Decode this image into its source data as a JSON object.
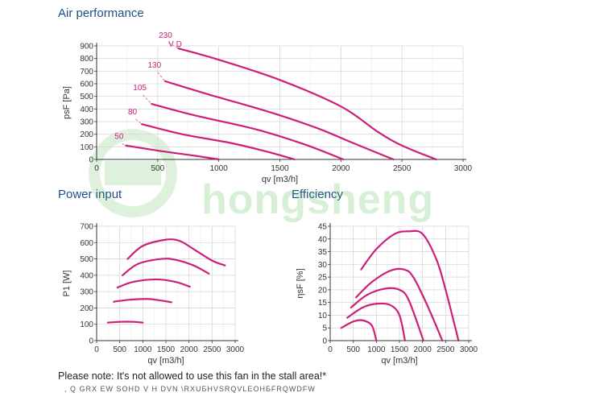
{
  "titles": {
    "air": "Air performance",
    "power": "Power input",
    "efficiency": "Efficiency"
  },
  "watermark_text": "hongsheng",
  "notes": {
    "stall": "Please note: It's not allowed to use this fan in the stall area!*",
    "garbled": ", Q  GRX EW  SOHD V H   DVN \\RXUƂHVSRQVLEOHƂFRQWDFW"
  },
  "colors": {
    "curve": "#cc1f7a",
    "grid": "#d8d8d8",
    "axis": "#333333",
    "title": "#1f4e8c",
    "dashed": "#e58ab5"
  },
  "chart_data": [
    {
      "id": "air",
      "type": "line",
      "xlabel": "qv [m3/h]",
      "ylabel": "psF [Pa]",
      "xlim": [
        0,
        3000
      ],
      "ylim": [
        0,
        900
      ],
      "xticks": [
        0,
        500,
        1000,
        1500,
        2000,
        2500,
        3000
      ],
      "yticks": [
        0,
        100,
        200,
        300,
        400,
        500,
        600,
        700,
        800,
        900
      ],
      "grid": true,
      "series": [
        {
          "name": "230",
          "sublabel": "V D",
          "x": [
            670,
            1000,
            1500,
            2000,
            2300,
            2500,
            2780
          ],
          "y": [
            880,
            790,
            630,
            420,
            220,
            110,
            0
          ],
          "dashed_start": [
            590,
            925
          ]
        },
        {
          "name": "130",
          "x": [
            560,
            900,
            1400,
            1800,
            2100,
            2430
          ],
          "y": [
            620,
            520,
            380,
            250,
            130,
            0
          ],
          "dashed_start": [
            500,
            690
          ]
        },
        {
          "name": "105",
          "x": [
            450,
            800,
            1300,
            1700,
            2020
          ],
          "y": [
            440,
            350,
            240,
            120,
            0
          ],
          "dashed_start": [
            380,
            510
          ]
        },
        {
          "name": "80",
          "x": [
            370,
            700,
            1100,
            1400,
            1620
          ],
          "y": [
            280,
            200,
            130,
            60,
            0
          ],
          "dashed_start": [
            320,
            320
          ]
        },
        {
          "name": "50",
          "x": [
            240,
            500,
            800,
            1000
          ],
          "y": [
            110,
            70,
            30,
            0
          ],
          "dashed_start": [
            210,
            125
          ]
        }
      ]
    },
    {
      "id": "power",
      "type": "line",
      "xlabel": "qv [m3/h]",
      "ylabel": "P1 [W]",
      "xlim": [
        0,
        3000
      ],
      "ylim": [
        0,
        700
      ],
      "xticks": [
        0,
        500,
        1000,
        1500,
        2000,
        2500,
        3000
      ],
      "yticks": [
        0,
        100,
        200,
        300,
        400,
        500,
        600,
        700
      ],
      "grid": true,
      "series": [
        {
          "x": [
            670,
            1000,
            1500,
            1800,
            2100,
            2500,
            2780
          ],
          "y": [
            500,
            580,
            618,
            610,
            560,
            490,
            460
          ]
        },
        {
          "x": [
            560,
            900,
            1400,
            1700,
            2100,
            2430
          ],
          "y": [
            400,
            470,
            500,
            495,
            460,
            410
          ]
        },
        {
          "x": [
            450,
            800,
            1300,
            1700,
            2020
          ],
          "y": [
            325,
            360,
            375,
            360,
            330
          ]
        },
        {
          "x": [
            370,
            700,
            1100,
            1400,
            1620
          ],
          "y": [
            238,
            250,
            255,
            245,
            235
          ]
        },
        {
          "x": [
            240,
            500,
            800,
            1000
          ],
          "y": [
            110,
            115,
            115,
            110
          ]
        }
      ]
    },
    {
      "id": "efficiency",
      "type": "line",
      "xlabel": "qv [m3/h]",
      "ylabel": "ηsF [%]",
      "xlim": [
        0,
        3000
      ],
      "ylim": [
        0,
        45
      ],
      "xticks": [
        0,
        500,
        1000,
        1500,
        2000,
        2500,
        3000
      ],
      "yticks": [
        0,
        5,
        10,
        15,
        20,
        25,
        30,
        35,
        40,
        45
      ],
      "grid": true,
      "series": [
        {
          "x": [
            670,
            1000,
            1400,
            1700,
            2000,
            2300,
            2500,
            2780
          ],
          "y": [
            28,
            36,
            42,
            43,
            42,
            32,
            20,
            0
          ]
        },
        {
          "x": [
            560,
            900,
            1300,
            1600,
            1800,
            2100,
            2430
          ],
          "y": [
            17,
            23,
            27.5,
            28,
            25,
            14,
            0
          ]
        },
        {
          "x": [
            450,
            800,
            1200,
            1500,
            1700,
            2020
          ],
          "y": [
            13,
            18,
            20.5,
            20,
            16,
            0
          ]
        },
        {
          "x": [
            370,
            700,
            1000,
            1300,
            1500,
            1620
          ],
          "y": [
            9,
            13,
            14.5,
            14,
            10,
            0
          ]
        },
        {
          "x": [
            240,
            500,
            700,
            900,
            1000
          ],
          "y": [
            5,
            7.5,
            8,
            6,
            0
          ]
        }
      ]
    }
  ]
}
